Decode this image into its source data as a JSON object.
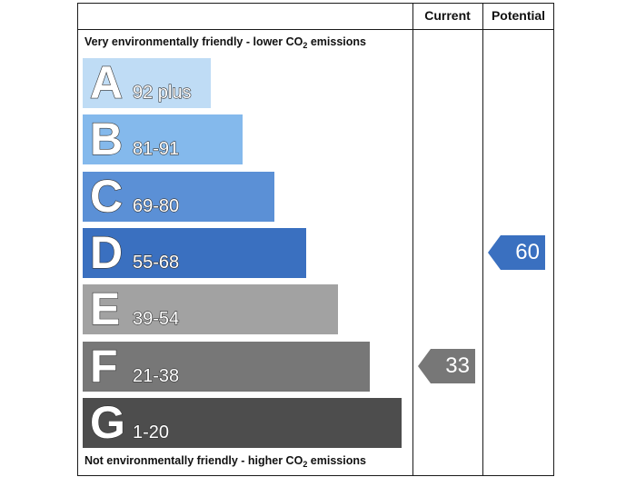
{
  "header": {
    "current_label": "Current",
    "potential_label": "Potential"
  },
  "captions": {
    "top_prefix": "Very environmentally friendly - lower CO",
    "top_subscript": "2",
    "top_suffix": " emissions",
    "bottom_prefix": "Not environmentally friendly - higher CO",
    "bottom_subscript": "2",
    "bottom_suffix": " emissions"
  },
  "chart_data": {
    "type": "bar",
    "bands": [
      {
        "letter": "A",
        "range": "92 plus",
        "min": 92,
        "max": 100,
        "color": "#bfdcf5"
      },
      {
        "letter": "B",
        "range": "81-91",
        "min": 81,
        "max": 91,
        "color": "#84b9ec"
      },
      {
        "letter": "C",
        "range": "69-80",
        "min": 69,
        "max": 80,
        "color": "#5b90d6"
      },
      {
        "letter": "D",
        "range": "55-68",
        "min": 55,
        "max": 68,
        "color": "#3a70c0"
      },
      {
        "letter": "E",
        "range": "39-54",
        "min": 39,
        "max": 54,
        "color": "#a2a2a2"
      },
      {
        "letter": "F",
        "range": "21-38",
        "min": 21,
        "max": 38,
        "color": "#777777"
      },
      {
        "letter": "G",
        "range": "1-20",
        "min": 1,
        "max": 20,
        "color": "#4d4d4d"
      }
    ],
    "current": {
      "value": 33,
      "band": "F",
      "color": "#777777"
    },
    "potential": {
      "value": 60,
      "band": "D",
      "color": "#3a70c0"
    }
  }
}
